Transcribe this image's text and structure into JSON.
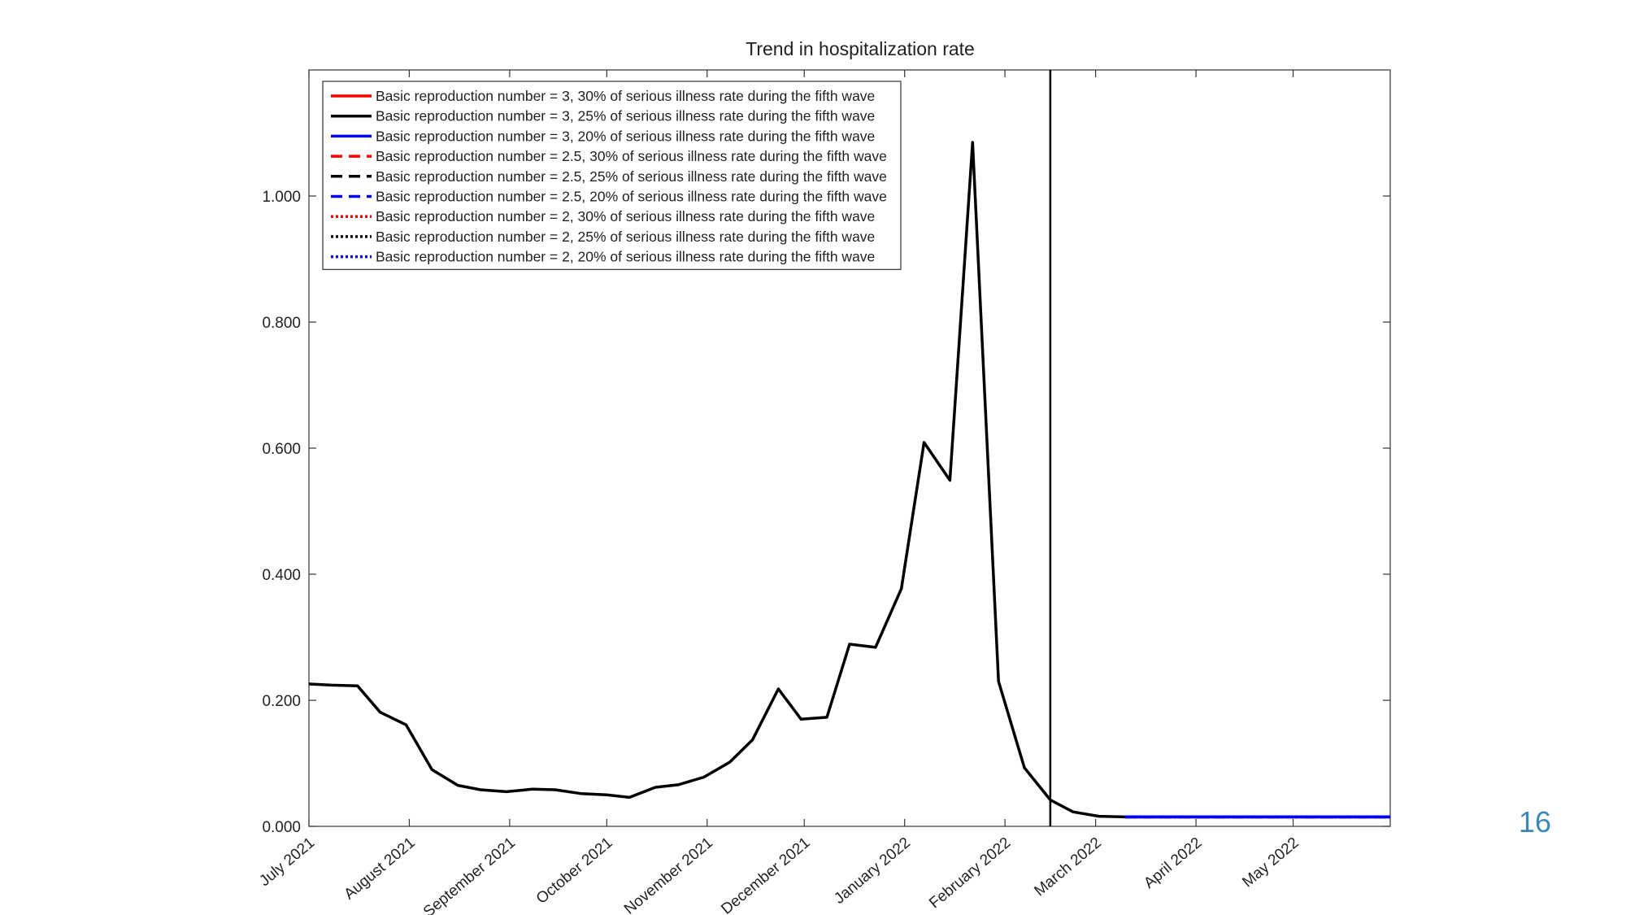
{
  "slide": {
    "page_number": "16"
  },
  "chart_data": {
    "type": "line",
    "title": "Trend in hospitalization rate",
    "xlabel": "",
    "ylabel": "",
    "x_axis": {
      "type": "date",
      "range": [
        "2021-07-01",
        "2022-05-31"
      ],
      "ticks": [
        {
          "date": "2021-07-01",
          "label": "July 2021"
        },
        {
          "date": "2021-08-01",
          "label": "August 2021"
        },
        {
          "date": "2021-09-01",
          "label": "September 2021"
        },
        {
          "date": "2021-10-01",
          "label": "October 2021"
        },
        {
          "date": "2021-11-01",
          "label": "November 2021"
        },
        {
          "date": "2021-12-01",
          "label": "December 2021"
        },
        {
          "date": "2022-01-01",
          "label": "January 2022"
        },
        {
          "date": "2022-02-01",
          "label": "February 2022"
        },
        {
          "date": "2022-03-01",
          "label": "March 2022"
        },
        {
          "date": "2022-04-01",
          "label": "April 2022"
        },
        {
          "date": "2022-05-01",
          "label": "May 2022"
        }
      ]
    },
    "y_axis": {
      "range": [
        0,
        1.2
      ],
      "ticks": [
        {
          "value": 0.0,
          "label": "0.000"
        },
        {
          "value": 0.2,
          "label": "0.200"
        },
        {
          "value": 0.4,
          "label": "0.400"
        },
        {
          "value": 0.6,
          "label": "0.600"
        },
        {
          "value": 0.8,
          "label": "0.800"
        },
        {
          "value": 1.0,
          "label": "1.000"
        }
      ]
    },
    "grid": false,
    "legend_position": "top-left",
    "vertical_marker": {
      "date": "2022-02-15",
      "color": "#000000"
    },
    "observed": {
      "color": "#000000",
      "points": [
        [
          "2021-07-01",
          0.226
        ],
        [
          "2021-07-08",
          0.224
        ],
        [
          "2021-07-16",
          0.223
        ],
        [
          "2021-07-23",
          0.181
        ],
        [
          "2021-07-31",
          0.161
        ],
        [
          "2021-08-08",
          0.09
        ],
        [
          "2021-08-16",
          0.065
        ],
        [
          "2021-08-23",
          0.058
        ],
        [
          "2021-08-31",
          0.055
        ],
        [
          "2021-09-08",
          0.059
        ],
        [
          "2021-09-15",
          0.058
        ],
        [
          "2021-09-23",
          0.052
        ],
        [
          "2021-10-01",
          0.05
        ],
        [
          "2021-10-08",
          0.046
        ],
        [
          "2021-10-16",
          0.062
        ],
        [
          "2021-10-23",
          0.066
        ],
        [
          "2021-10-31",
          0.078
        ],
        [
          "2021-11-08",
          0.102
        ],
        [
          "2021-11-15",
          0.137
        ],
        [
          "2021-11-23",
          0.218
        ],
        [
          "2021-11-30",
          0.17
        ],
        [
          "2021-12-08",
          0.173
        ],
        [
          "2021-12-15",
          0.289
        ],
        [
          "2021-12-23",
          0.284
        ],
        [
          "2021-12-31",
          0.377
        ],
        [
          "2022-01-07",
          0.609
        ],
        [
          "2022-01-15",
          0.549
        ],
        [
          "2022-01-22",
          1.085
        ],
        [
          "2022-01-30",
          0.23
        ],
        [
          "2022-02-07",
          0.093
        ],
        [
          "2022-02-15",
          0.042
        ],
        [
          "2022-02-22",
          0.023
        ],
        [
          "2022-03-02",
          0.016
        ],
        [
          "2022-03-10",
          0.015
        ]
      ]
    },
    "series": [
      {
        "name": "Basic reproduction number = 3, 30% of serious illness rate during the fifth wave",
        "color": "#ff0000",
        "dash": "solid",
        "values": [
          [
            "2022-03-10",
            0.015
          ],
          [
            "2022-05-31",
            0.015
          ]
        ]
      },
      {
        "name": "Basic reproduction number = 3, 25% of serious illness rate during the fifth wave",
        "color": "#000000",
        "dash": "solid",
        "values": [
          [
            "2022-03-10",
            0.015
          ],
          [
            "2022-05-31",
            0.015
          ]
        ]
      },
      {
        "name": "Basic reproduction number = 3, 20% of serious illness rate during the fifth wave",
        "color": "#0000ff",
        "dash": "solid",
        "values": [
          [
            "2022-03-10",
            0.015
          ],
          [
            "2022-05-31",
            0.015
          ]
        ]
      },
      {
        "name": "Basic reproduction number = 2.5, 30% of serious illness rate during the fifth wave",
        "color": "#ff0000",
        "dash": "dashed",
        "values": [
          [
            "2022-03-10",
            0.015
          ],
          [
            "2022-05-31",
            0.015
          ]
        ]
      },
      {
        "name": "Basic reproduction number = 2.5, 25% of serious illness rate during the fifth wave",
        "color": "#000000",
        "dash": "dashed",
        "values": [
          [
            "2022-03-10",
            0.015
          ],
          [
            "2022-05-31",
            0.015
          ]
        ]
      },
      {
        "name": "Basic reproduction number = 2.5, 20% of serious illness rate during the fifth wave",
        "color": "#0000ff",
        "dash": "dashed",
        "values": [
          [
            "2022-03-10",
            0.015
          ],
          [
            "2022-05-31",
            0.015
          ]
        ]
      },
      {
        "name": "Basic reproduction number = 2, 30% of serious illness rate during the fifth wave",
        "color": "#ff0000",
        "dash": "dotted",
        "values": [
          [
            "2022-03-10",
            0.015
          ],
          [
            "2022-05-31",
            0.015
          ]
        ]
      },
      {
        "name": "Basic reproduction number = 2, 25% of serious illness rate during the fifth wave",
        "color": "#000000",
        "dash": "dotted",
        "values": [
          [
            "2022-03-10",
            0.015
          ],
          [
            "2022-05-31",
            0.015
          ]
        ]
      },
      {
        "name": "Basic reproduction number = 2, 20% of serious illness rate during the fifth wave",
        "color": "#0000ff",
        "dash": "dotted",
        "values": [
          [
            "2022-03-10",
            0.015
          ],
          [
            "2022-05-31",
            0.015
          ]
        ]
      }
    ]
  }
}
